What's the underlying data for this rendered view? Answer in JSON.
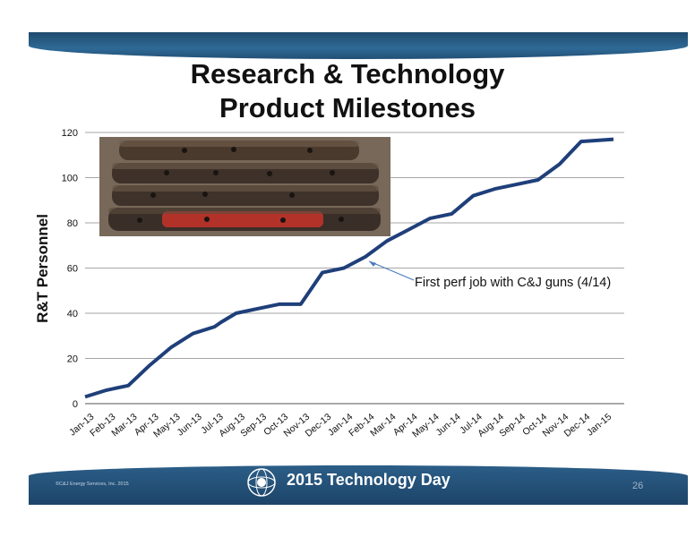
{
  "slide": {
    "title_line1": "Research & Technology",
    "title_line2": "Product Milestones",
    "footer_title": "2015 Technology Day",
    "copyright": "©C&J Energy Services, Inc. 2015",
    "page_number": "26"
  },
  "colors": {
    "line": "#1f3f7a",
    "band": "#2b5e88",
    "grid": "#888888",
    "annotation_arrow": "#4a7bbf"
  },
  "chart_data": {
    "type": "line",
    "ylabel": "R&T Personnel",
    "xlabel": "",
    "ylim": [
      0,
      120
    ],
    "yticks": [
      0,
      20,
      40,
      60,
      80,
      100,
      120
    ],
    "tick_labels": [
      "Jan-13",
      "Feb-13",
      "Mar-13",
      "Apr-13",
      "May-13",
      "Jun-13",
      "Jul-13",
      "Aug-13",
      "Sep-13",
      "Oct-13",
      "Nov-13",
      "Dec-13",
      "Jan-14",
      "Feb-14",
      "Mar-14",
      "Apr-14",
      "May-14",
      "Jun-14",
      "Jul-14",
      "Aug-14",
      "Sep-14",
      "Oct-14",
      "Nov-14",
      "Dec-14",
      "Jan-15"
    ],
    "points": [
      {
        "x": 0.0,
        "y": 3
      },
      {
        "x": 1.0,
        "y": 6
      },
      {
        "x": 2.0,
        "y": 8
      },
      {
        "x": 3.0,
        "y": 17
      },
      {
        "x": 4.0,
        "y": 25
      },
      {
        "x": 5.0,
        "y": 31
      },
      {
        "x": 6.0,
        "y": 34
      },
      {
        "x": 6.3,
        "y": 36
      },
      {
        "x": 7.0,
        "y": 40
      },
      {
        "x": 8.0,
        "y": 42
      },
      {
        "x": 9.0,
        "y": 44
      },
      {
        "x": 10.0,
        "y": 44
      },
      {
        "x": 11.0,
        "y": 58
      },
      {
        "x": 12.0,
        "y": 60
      },
      {
        "x": 13.0,
        "y": 65
      },
      {
        "x": 14.0,
        "y": 72
      },
      {
        "x": 15.0,
        "y": 77
      },
      {
        "x": 16.0,
        "y": 82
      },
      {
        "x": 17.0,
        "y": 84
      },
      {
        "x": 18.0,
        "y": 92
      },
      {
        "x": 19.0,
        "y": 95
      },
      {
        "x": 20.0,
        "y": 97
      },
      {
        "x": 21.0,
        "y": 99
      },
      {
        "x": 22.0,
        "y": 106
      },
      {
        "x": 23.0,
        "y": 116
      },
      {
        "x": 24.5,
        "y": 117
      }
    ],
    "annotation": {
      "text": "First perf job with C&J guns (4/14)",
      "x": 13.0,
      "y": 65
    }
  }
}
